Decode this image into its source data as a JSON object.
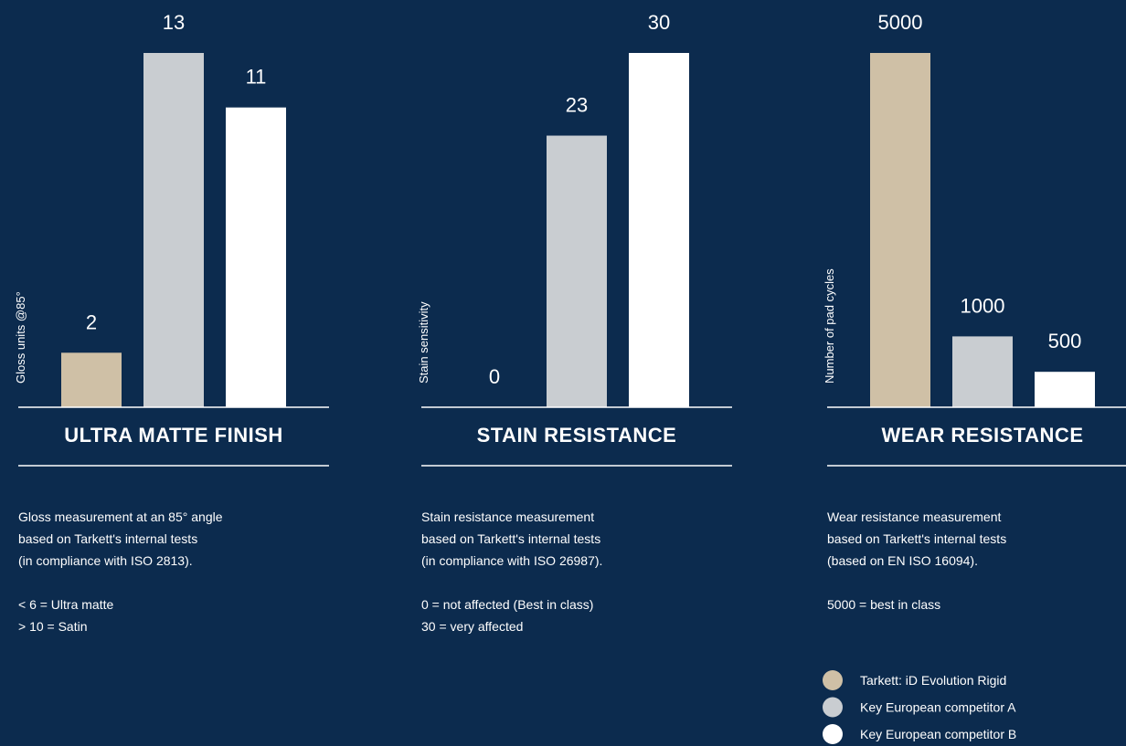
{
  "chart_data": [
    {
      "type": "bar",
      "title": "ULTRA MATTE FINISH",
      "ylabel": "Gloss units @85°",
      "values": [
        2,
        13,
        11
      ],
      "ylim": [
        0,
        13
      ],
      "notes": [
        [
          "Gloss measurement at an 85° angle",
          "based on Tarkett's internal tests",
          "(in compliance with ISO 2813)."
        ],
        [
          "< 6 = Ultra matte",
          "> 10 = Satin"
        ]
      ]
    },
    {
      "type": "bar",
      "title": "STAIN RESISTANCE",
      "ylabel": "Stain sensitivity",
      "values": [
        0,
        23,
        30
      ],
      "ylim": [
        0,
        30
      ],
      "notes": [
        [
          "Stain resistance measurement",
          "based on Tarkett's internal tests",
          "(in compliance with ISO 26987)."
        ],
        [
          "0 = not affected (Best in class)",
          "30 = very affected"
        ]
      ]
    },
    {
      "type": "bar",
      "title": "WEAR RESISTANCE",
      "ylabel": "Number of pad cycles",
      "values": [
        5000,
        1000,
        500
      ],
      "ylim": [
        0,
        5000
      ],
      "notes": [
        [
          "Wear resistance measurement",
          "based on Tarkett's internal tests",
          "(based on EN ISO 16094)."
        ],
        [
          "5000 = best in class"
        ]
      ]
    }
  ],
  "legend": [
    {
      "name": "Tarkett: iD Evolution Rigid",
      "color": "#cfc0a6"
    },
    {
      "name": "Key European competitor A",
      "color": "#c9cdd1"
    },
    {
      "name": "Key European competitor B",
      "color": "#ffffff"
    }
  ]
}
